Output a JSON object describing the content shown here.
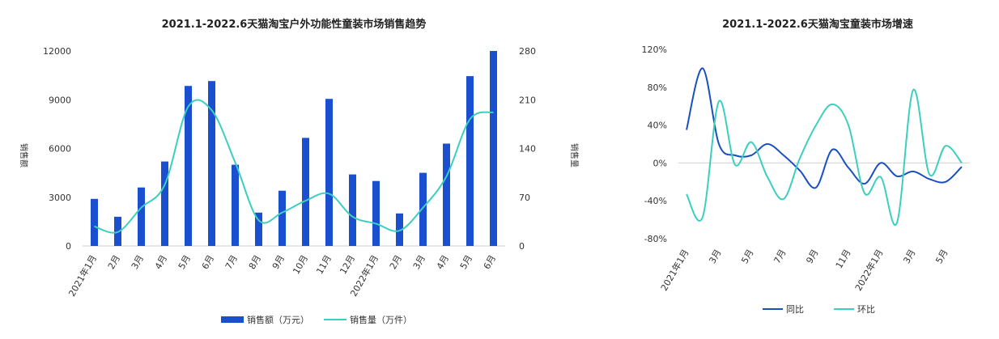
{
  "chart_data": [
    {
      "type": "bar",
      "title": "2021.1-2022.6天猫淘宝户外功能性童装市场销售趋势",
      "categories": [
        "2021年1月",
        "2月",
        "3月",
        "4月",
        "5月",
        "6月",
        "7月",
        "8月",
        "9月",
        "10月",
        "11月",
        "12月",
        "2022年1月",
        "2月",
        "3月",
        "4月",
        "5月",
        "6月"
      ],
      "ylabel": "销售额",
      "y2label": "销售量",
      "ylim": [
        0,
        12000
      ],
      "yticks": [
        0,
        3000,
        6000,
        9000,
        12000
      ],
      "y2lim": [
        0,
        280
      ],
      "y2ticks": [
        0,
        70,
        140,
        210,
        280
      ],
      "series": [
        {
          "name": "销售额（万元）",
          "type": "bar",
          "axis": "left",
          "color": "#1a4fcf",
          "values": [
            2900,
            1800,
            3600,
            5200,
            9850,
            10150,
            5000,
            2050,
            3400,
            6650,
            9050,
            4400,
            4000,
            2000,
            4500,
            6300,
            10450,
            12000
          ]
        },
        {
          "name": "销售量（万件）",
          "type": "line",
          "axis": "right",
          "color": "#3ccfc0",
          "values": [
            28,
            20,
            55,
            88,
            200,
            195,
            120,
            37,
            48,
            65,
            75,
            42,
            32,
            22,
            55,
            100,
            182,
            192
          ]
        }
      ],
      "legend": "bottom"
    },
    {
      "type": "line",
      "title": "2021.1-2022.6天猫淘宝童装市场增速",
      "x": [
        "2021年1月",
        "2月",
        "3月",
        "4月",
        "5月",
        "6月",
        "7月",
        "8月",
        "9月",
        "10月",
        "11月",
        "12月",
        "2022年1月",
        "2月",
        "3月",
        "4月",
        "5月",
        "6月"
      ],
      "xticks_shown": [
        "2021年1月",
        "3月",
        "5月",
        "7月",
        "9月",
        "11月",
        "2022年1月",
        "3月",
        "5月"
      ],
      "ylim": [
        -80,
        120
      ],
      "yticks": [
        "-80%",
        "-40%",
        "0%",
        "40%",
        "80%",
        "120%"
      ],
      "yticks_values": [
        -80,
        -40,
        0,
        40,
        80,
        120
      ],
      "series": [
        {
          "name": "同比",
          "color": "#1a4fc0",
          "values": [
            35,
            100,
            20,
            8,
            8,
            20,
            8,
            -8,
            -26,
            14,
            -5,
            -22,
            0,
            -14,
            -9,
            -17,
            -20,
            -4
          ]
        },
        {
          "name": "环比",
          "color": "#3ccfc0",
          "values": [
            -33,
            -57,
            65,
            -2,
            22,
            -15,
            -38,
            5,
            40,
            62,
            40,
            -32,
            -15,
            -63,
            77,
            -12,
            18,
            0
          ]
        }
      ],
      "legend": "bottom"
    }
  ]
}
